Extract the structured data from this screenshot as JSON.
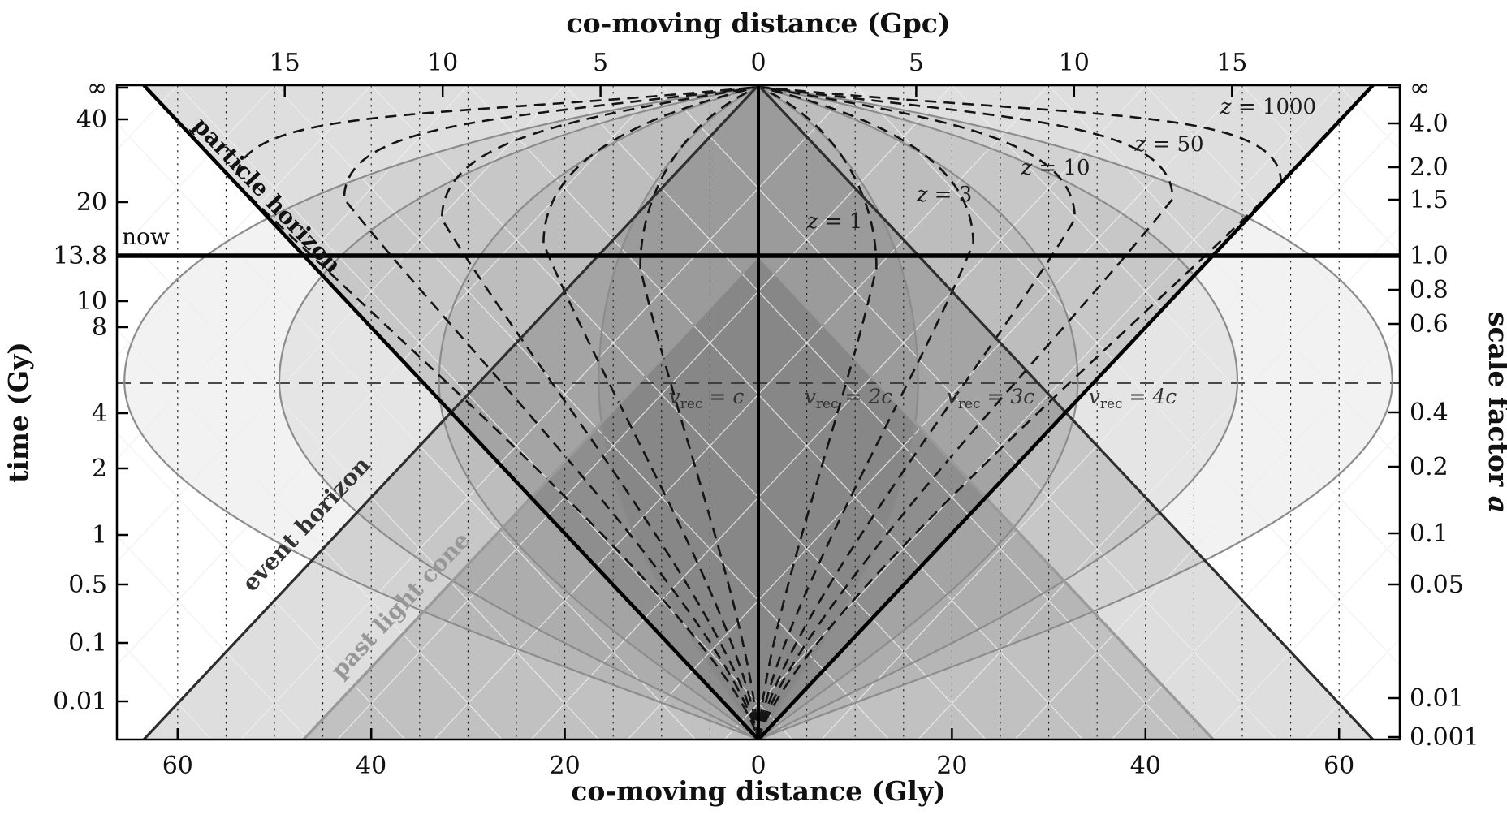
{
  "axes": {
    "top": {
      "title": "co-moving distance (Gpc)",
      "ticks": [
        "15",
        "10",
        "5",
        "0",
        "5",
        "10",
        "15"
      ]
    },
    "bottom": {
      "title": "co-moving distance (Gly)",
      "ticks": [
        "60",
        "40",
        "20",
        "0",
        "20",
        "40",
        "60"
      ]
    },
    "left": {
      "title": "time (Gy)",
      "ticks": [
        "∞",
        "40",
        "20",
        "13.8",
        "10",
        "8",
        "4",
        "2",
        "1",
        "0.5",
        "0.1",
        "0.01"
      ]
    },
    "right": {
      "title_prefix": "scale factor ",
      "title_var": "a",
      "ticks": [
        "∞",
        "4.0",
        "2.0",
        "1.5",
        "1.0",
        "0.8",
        "0.6",
        "0.4",
        "0.2",
        "0.1",
        "0.05",
        "0.01",
        "0.001"
      ]
    }
  },
  "annotations": {
    "now": "now"
  },
  "chart_data": {
    "type": "line",
    "title": "Conformal spacetime diagram of the expanding universe: time / scale factor versus co-moving distance",
    "x_bottom": {
      "label": "co-moving distance (Gly)",
      "tick_values": [
        -60,
        -40,
        -20,
        0,
        20,
        40,
        60
      ],
      "range_gly": [
        -66.3,
        66.3
      ]
    },
    "x_top": {
      "label": "co-moving distance (Gpc)",
      "tick_values": [
        -15,
        -10,
        -5,
        0,
        5,
        10,
        15
      ]
    },
    "y_left": {
      "label": "time (Gy)",
      "tick_values": [
        "∞",
        40,
        20,
        13.8,
        10,
        8,
        4,
        2,
        1,
        0.5,
        0.1,
        0.01
      ],
      "scale": "conformal (big bang at bottom, infinite future at top)"
    },
    "y_right": {
      "label": "scale factor a",
      "tick_values": [
        "∞",
        4.0,
        2.0,
        1.5,
        1.0,
        0.8,
        0.6,
        0.4,
        0.2,
        0.1,
        0.05,
        0.01,
        0.001
      ]
    },
    "now_marker": {
      "label": "now",
      "time_gy": 13.8,
      "scale_factor": 1.0
    },
    "horizons": {
      "particle": {
        "label": "particle horizon",
        "style": "solid-thick-black",
        "comoving_gly_now": 47,
        "comoving_gly_future_infinity": 63.5,
        "comoving_gly_big_bang": 0
      },
      "event": {
        "label": "event horizon",
        "style": "solid-dark-gray",
        "comoving_gly_now": 16.5,
        "comoving_gly_big_bang": 63.5,
        "comoving_gly_future_infinity": 0
      },
      "past_light_cone": {
        "label": "past light cone",
        "style": "solid-light-gray",
        "comoving_gly_now": 0,
        "comoving_gly_big_bang": 47
      }
    },
    "redshift_contours": [
      {
        "var": "z",
        "eq": " = ",
        "val": "1",
        "z": 1,
        "style": "dashed-black",
        "comoving_gly_at_now": 11,
        "max_comoving_gly": 12.2
      },
      {
        "var": "z",
        "eq": " = ",
        "val": "3",
        "z": 3,
        "style": "dashed-black",
        "comoving_gly_at_now": 21,
        "max_comoving_gly": 22.2
      },
      {
        "var": "z",
        "eq": " = ",
        "val": "10",
        "z": 10,
        "style": "dashed-black",
        "comoving_gly_at_now": 30,
        "max_comoving_gly": 32.7
      },
      {
        "var": "z",
        "eq": " = ",
        "val": "50",
        "z": 50,
        "style": "dashed-black",
        "comoving_gly_at_now": 38,
        "max_comoving_gly": 42.8
      },
      {
        "var": "z",
        "eq": " = ",
        "val": "1000",
        "z": 1000,
        "style": "dashed-black",
        "comoving_gly_at_now": 45.5,
        "max_comoving_gly": 54
      }
    ],
    "velocity_contours": [
      {
        "var": "v",
        "sub": "rec",
        "eq": " = ",
        "val": "c",
        "v_over_c": 1,
        "style": "solid-gray",
        "max_comoving_gly": 16.5
      },
      {
        "var": "v",
        "sub": "rec",
        "eq": " = ",
        "val": "2c",
        "v_over_c": 2,
        "style": "solid-gray",
        "max_comoving_gly": 33
      },
      {
        "var": "v",
        "sub": "rec",
        "eq": " = ",
        "val": "3c",
        "v_over_c": 3,
        "style": "solid-gray",
        "max_comoving_gly": 49.5
      },
      {
        "var": "v",
        "sub": "rec",
        "eq": " = ",
        "val": "4c",
        "v_over_c": 4,
        "style": "solid-gray",
        "max_comoving_gly": 65.5
      }
    ],
    "gridlines": {
      "vertical_dotted_spacing_gly": 5,
      "light_cone_lattice_spacing_gly": 10,
      "dashed_horizontal_reference": "thin dashed horizontal line between t = 8 and t = 4 Gy (a ≈ 0.5)"
    },
    "shaded_regions": [
      "inside event horizon (triangle, apex at top centre)",
      "inside particle horizon (triangle, apex at bottom centre)",
      "inside past light cone (triangle, apex at now/centre)",
      "nested superluminal-recession teardrop regions bounded by v_rec contours"
    ]
  }
}
